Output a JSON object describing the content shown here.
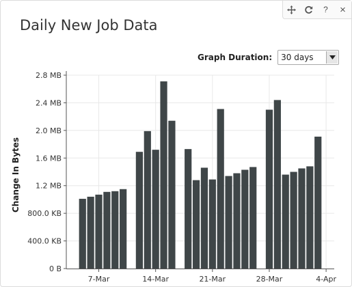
{
  "widget": {
    "title": "Daily New Job Data",
    "toolbar": {
      "move_icon": "move-icon",
      "refresh_icon": "refresh-icon",
      "help_label": "?",
      "close_label": "×"
    },
    "duration": {
      "label": "Graph Duration:",
      "selected": "30 days"
    }
  },
  "chart_data": {
    "type": "bar",
    "ylabel": "Change In Bytes",
    "ylim": [
      0,
      2.8
    ],
    "y_ticks": [
      {
        "value": 0,
        "label": "0 B"
      },
      {
        "value": 0.4,
        "label": "400.0 KB"
      },
      {
        "value": 0.8,
        "label": "800.0 KB"
      },
      {
        "value": 1.2,
        "label": "1.2 MB"
      },
      {
        "value": 1.6,
        "label": "1.6 MB"
      },
      {
        "value": 2.0,
        "label": "2.0 MB"
      },
      {
        "value": 2.4,
        "label": "2.4 MB"
      },
      {
        "value": 2.8,
        "label": "2.8 MB"
      }
    ],
    "x_start": "2015-03-03",
    "x_end": "2015-04-05",
    "x_ticks": [
      {
        "date": "2015-03-07",
        "label": "7-Mar"
      },
      {
        "date": "2015-03-14",
        "label": "14-Mar"
      },
      {
        "date": "2015-03-21",
        "label": "21-Mar"
      },
      {
        "date": "2015-03-28",
        "label": "28-Mar"
      },
      {
        "date": "2015-04-04",
        "label": "4-Apr"
      }
    ],
    "bars": [
      {
        "date": "2015-03-05",
        "value": 1.01
      },
      {
        "date": "2015-03-06",
        "value": 1.04
      },
      {
        "date": "2015-03-07",
        "value": 1.07
      },
      {
        "date": "2015-03-08",
        "value": 1.11
      },
      {
        "date": "2015-03-09",
        "value": 1.12
      },
      {
        "date": "2015-03-10",
        "value": 1.15
      },
      {
        "date": "2015-03-12",
        "value": 1.69
      },
      {
        "date": "2015-03-13",
        "value": 1.99
      },
      {
        "date": "2015-03-14",
        "value": 1.72
      },
      {
        "date": "2015-03-15",
        "value": 2.71
      },
      {
        "date": "2015-03-16",
        "value": 2.14
      },
      {
        "date": "2015-03-18",
        "value": 1.73
      },
      {
        "date": "2015-03-19",
        "value": 1.28
      },
      {
        "date": "2015-03-20",
        "value": 1.46
      },
      {
        "date": "2015-03-21",
        "value": 1.29
      },
      {
        "date": "2015-03-22",
        "value": 2.31
      },
      {
        "date": "2015-03-23",
        "value": 1.34
      },
      {
        "date": "2015-03-24",
        "value": 1.38
      },
      {
        "date": "2015-03-25",
        "value": 1.43
      },
      {
        "date": "2015-03-26",
        "value": 1.47
      },
      {
        "date": "2015-03-28",
        "value": 2.3
      },
      {
        "date": "2015-03-29",
        "value": 2.44
      },
      {
        "date": "2015-03-30",
        "value": 1.36
      },
      {
        "date": "2015-03-31",
        "value": 1.4
      },
      {
        "date": "2015-04-01",
        "value": 1.45
      },
      {
        "date": "2015-04-02",
        "value": 1.48
      },
      {
        "date": "2015-04-03",
        "value": 1.91
      }
    ],
    "grid": true,
    "colors": {
      "bar": "#3f4648",
      "grid": "#e8e8e8",
      "axis": "#555555"
    }
  }
}
